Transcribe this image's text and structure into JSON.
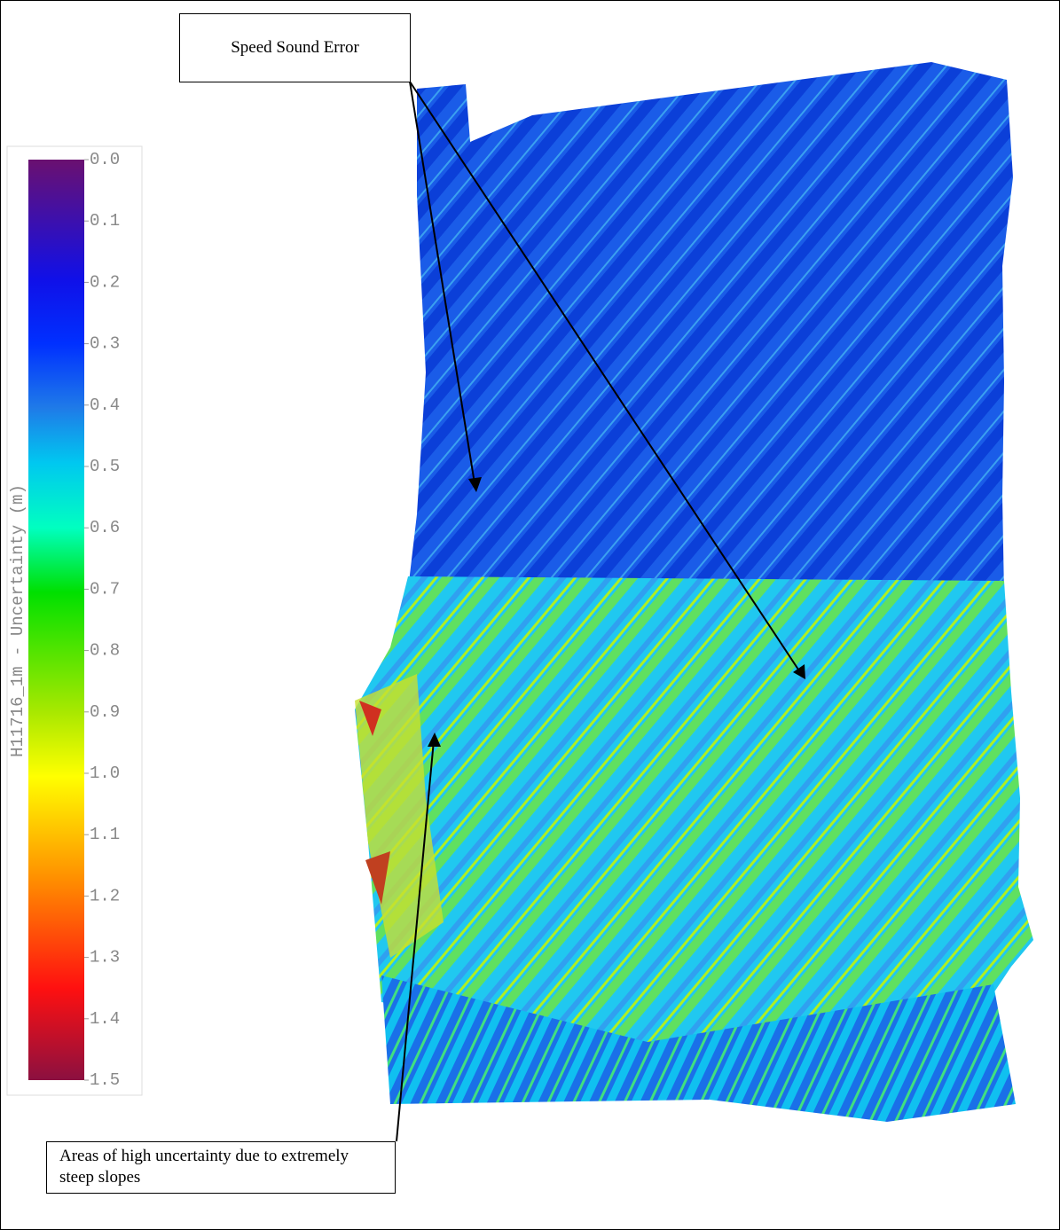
{
  "colorbar": {
    "title": "H11716_1m - Uncertainty (m)",
    "lim": [
      0,
      1.5
    ],
    "ticks": [
      {
        "value": 0,
        "label": "0.0"
      },
      0.1,
      0.2,
      0.3,
      0.4,
      0.5,
      0.6,
      0.7,
      0.8,
      0.9,
      {
        "value": 1,
        "label": "1.0"
      },
      1.1,
      1.2,
      1.3,
      1.4,
      1.5
    ]
  },
  "annotations": [
    {
      "text": "Speed Sound Error"
    },
    {
      "text": "Areas of high uncertainty due to extremely steep slopes"
    }
  ]
}
